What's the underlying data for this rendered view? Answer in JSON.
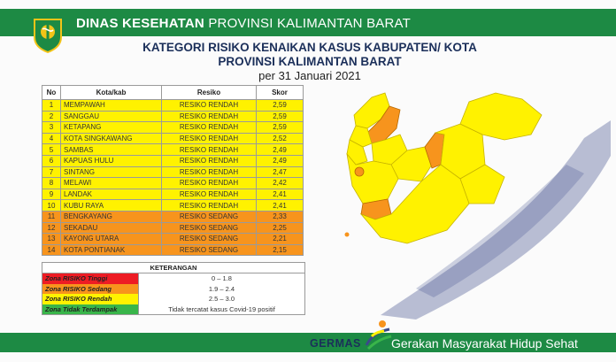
{
  "header": {
    "agency_bold": "DINAS KESEHATAN",
    "agency_region": "PROVINSI KALIMANTAN BARAT"
  },
  "title": {
    "line1": "KATEGORI RISIKO KENAIKAN KASUS KABUPATEN/ KOTA",
    "line2": "PROVINSI KALIMANTAN BARAT",
    "date": "per 31 Januari 2021"
  },
  "table": {
    "headers": [
      "No",
      "Kota/kab",
      "Resiko",
      "Skor"
    ],
    "rows": [
      {
        "no": "1",
        "name": "MEMPAWAH",
        "risk": "RESIKO RENDAH",
        "score": "2,59"
      },
      {
        "no": "2",
        "name": "SANGGAU",
        "risk": "RESIKO RENDAH",
        "score": "2,59"
      },
      {
        "no": "3",
        "name": "KETAPANG",
        "risk": "RESIKO RENDAH",
        "score": "2,59"
      },
      {
        "no": "4",
        "name": "KOTA SINGKAWANG",
        "risk": "RESIKO RENDAH",
        "score": "2,52"
      },
      {
        "no": "5",
        "name": "SAMBAS",
        "risk": "RESIKO RENDAH",
        "score": "2,49"
      },
      {
        "no": "6",
        "name": "KAPUAS HULU",
        "risk": "RESIKO RENDAH",
        "score": "2,49"
      },
      {
        "no": "7",
        "name": "SINTANG",
        "risk": "RESIKO RENDAH",
        "score": "2,47"
      },
      {
        "no": "8",
        "name": "MELAWI",
        "risk": "RESIKO RENDAH",
        "score": "2,42"
      },
      {
        "no": "9",
        "name": "LANDAK",
        "risk": "RESIKO RENDAH",
        "score": "2,41"
      },
      {
        "no": "10",
        "name": "KUBU RAYA",
        "risk": "RESIKO RENDAH",
        "score": "2,41"
      },
      {
        "no": "11",
        "name": "BENGKAYANG",
        "risk": "RESIKO SEDANG",
        "score": "2,33"
      },
      {
        "no": "12",
        "name": "SEKADAU",
        "risk": "RESIKO SEDANG",
        "score": "2,25"
      },
      {
        "no": "13",
        "name": "KAYONG UTARA",
        "risk": "RESIKO SEDANG",
        "score": "2,21"
      },
      {
        "no": "14",
        "name": "KOTA PONTIANAK",
        "risk": "RESIKO SEDANG",
        "score": "2,15"
      }
    ]
  },
  "legend": {
    "title": "KETERANGAN",
    "items": [
      {
        "label": "Zona RISIKO Tinggi",
        "value": "0 – 1.8",
        "color": "#ed1c24"
      },
      {
        "label": "Zona RISIKO Sedang",
        "value": "1.9 – 2.4",
        "color": "#f7941d"
      },
      {
        "label": "Zona RISIKO Rendah",
        "value": "2.5 – 3.0",
        "color": "#fff200"
      },
      {
        "label": "Zona Tidak Terdampak",
        "value": "Tidak tercatat kasus Covid-19 positif",
        "color": "#39b54a"
      }
    ]
  },
  "colors": {
    "brand_green": "#1d8a44",
    "navy": "#1b2f5a",
    "low_risk": "#fff200",
    "medium_risk": "#f7941d"
  },
  "footer": {
    "brand": "GERMAS",
    "slogan": "Gerakan Masyarakat Hidup Sehat"
  }
}
